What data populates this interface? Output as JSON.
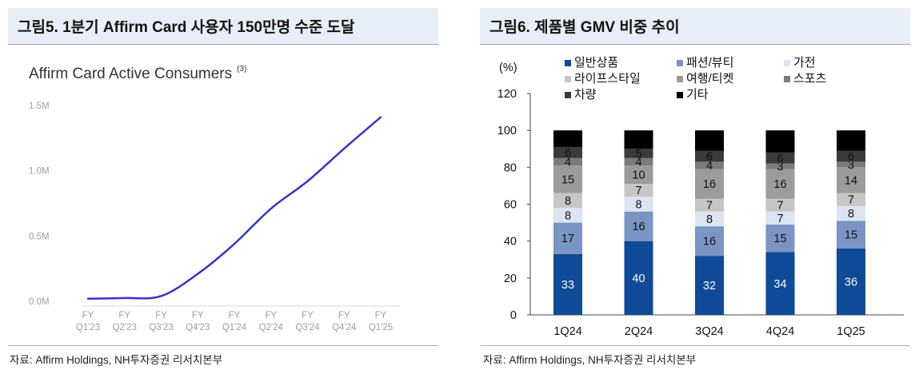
{
  "left": {
    "title": "그림5. 1분기 Affirm Card 사용자 150만명 수준 도달",
    "source": "자료: Affirm Holdings, NH투자증권 리서치본부"
  },
  "right": {
    "title": "그림6. 제품별 GMV 비중 추이",
    "source": "자료: Affirm Holdings, NH투자증권 리서치본부"
  },
  "chart_data": [
    {
      "type": "line",
      "title": "Affirm Card Active Consumers",
      "title_superscript": "(3)",
      "x": [
        "FY Q1'23",
        "FY Q2'23",
        "FY Q3'23",
        "FY Q4'23",
        "FY Q1'24",
        "FY Q2'24",
        "FY Q3'24",
        "FY Q4'24",
        "FY Q1'25"
      ],
      "x_tick_lines": [
        [
          "FY",
          "Q1'23"
        ],
        [
          "FY",
          "Q2'23"
        ],
        [
          "FY",
          "Q3'23"
        ],
        [
          "FY",
          "Q4'23"
        ],
        [
          "FY",
          "Q1'24"
        ],
        [
          "FY",
          "Q2'24"
        ],
        [
          "FY",
          "Q3'24"
        ],
        [
          "FY",
          "Q4'24"
        ],
        [
          "FY",
          "Q1'25"
        ]
      ],
      "values": [
        0.02,
        0.025,
        0.04,
        0.21,
        0.44,
        0.71,
        0.92,
        1.17,
        1.41
      ],
      "value_unit": "M",
      "yticks": [
        "0.0M",
        "0.5M",
        "1.0M",
        "1.5M"
      ],
      "ylim": [
        0,
        1.5
      ],
      "color": "#3535c8"
    },
    {
      "type": "bar",
      "stacked": true,
      "ylabel": "(%)",
      "categories": [
        "1Q24",
        "2Q24",
        "3Q24",
        "4Q24",
        "1Q25"
      ],
      "ylim": [
        0,
        120
      ],
      "yticks": [
        "0",
        "20",
        "40",
        "60",
        "80",
        "100",
        "120"
      ],
      "series": [
        {
          "name": "일반상품",
          "values": [
            33,
            40,
            32,
            34,
            36
          ],
          "color": "#0f4b96",
          "labelColor": "#ffffff"
        },
        {
          "name": "패션/뷰티",
          "values": [
            17,
            16,
            16,
            15,
            15
          ],
          "color": "#7a94c4",
          "labelColor": "#111111"
        },
        {
          "name": "가전",
          "values": [
            8,
            8,
            8,
            7,
            8
          ],
          "color": "#dbe4f1",
          "labelColor": "#111111"
        },
        {
          "name": "라이프스타일",
          "values": [
            8,
            7,
            7,
            7,
            7
          ],
          "color": "#c6c6c6",
          "labelColor": "#111111"
        },
        {
          "name": "여행/티켓",
          "values": [
            15,
            10,
            16,
            16,
            14
          ],
          "color": "#9b9b9b",
          "labelColor": "#111111"
        },
        {
          "name": "스포츠",
          "values": [
            4,
            4,
            4,
            3,
            3
          ],
          "color": "#7c7c7c",
          "labelColor": "#111111"
        },
        {
          "name": "차량",
          "values": [
            6,
            5,
            6,
            6,
            6
          ],
          "color": "#3a3a3a",
          "labelColor": "#111111"
        },
        {
          "name": "기타",
          "values": [
            9,
            10,
            11,
            12,
            11
          ],
          "color": "#000000",
          "labelColor": null
        }
      ]
    }
  ]
}
